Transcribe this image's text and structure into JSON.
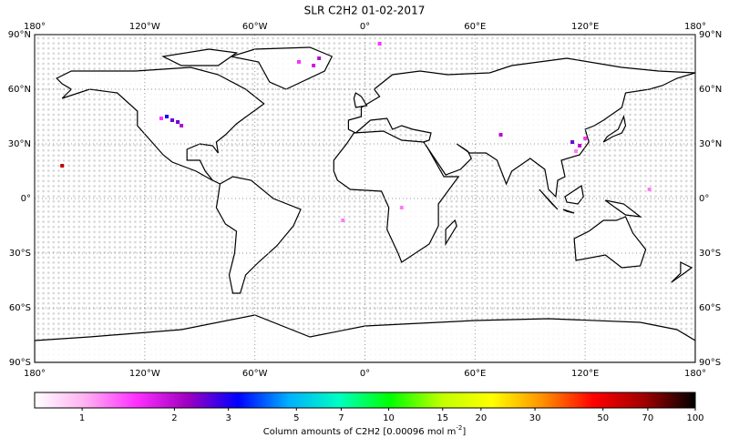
{
  "chart_data": {
    "type": "map",
    "title": "SLR C2H2 01-02-2017",
    "xlim": [
      -180,
      180
    ],
    "ylim": [
      -90,
      90
    ],
    "xticks": [
      {
        "value": -180,
        "label": "180°"
      },
      {
        "value": -120,
        "label": "120°W"
      },
      {
        "value": -60,
        "label": "60°W"
      },
      {
        "value": 0,
        "label": "0°"
      },
      {
        "value": 60,
        "label": "60°E"
      },
      {
        "value": 120,
        "label": "120°E"
      },
      {
        "value": 180,
        "label": "180°"
      }
    ],
    "yticks": [
      {
        "value": 90,
        "label": "90°N"
      },
      {
        "value": 60,
        "label": "60°N"
      },
      {
        "value": 30,
        "label": "30°N"
      },
      {
        "value": 0,
        "label": "0°"
      },
      {
        "value": -30,
        "label": "30°S"
      },
      {
        "value": -60,
        "label": "60°S"
      },
      {
        "value": -90,
        "label": "90°S"
      }
    ],
    "grid": true,
    "points": {
      "x": [
        -105,
        -108,
        -102,
        -100,
        -111,
        -36,
        -28,
        -25,
        8,
        113,
        117,
        120,
        115,
        74,
        -165,
        155,
        20,
        -12
      ],
      "y": [
        43,
        45,
        42,
        40,
        44,
        75,
        73,
        77,
        85,
        31,
        29,
        33,
        26,
        35,
        18,
        5,
        -5,
        -12
      ],
      "values": [
        2.5,
        3,
        2.5,
        2,
        1.5,
        1.5,
        1.8,
        2,
        1.5,
        2.5,
        2,
        1.5,
        1.2,
        2,
        60,
        1.2,
        1.2,
        1.2
      ]
    },
    "colorbar": {
      "label": "Column amounts of C2H2 [0.00096 mol m$^{-2}$]",
      "lim": [
        0.7,
        100
      ],
      "log": true,
      "ticks": [
        1,
        2,
        3,
        5,
        7,
        10,
        15,
        20,
        30,
        50,
        70,
        100
      ],
      "colors": [
        "#ffffff",
        "#ffb0f0",
        "#ff30ff",
        "#a000c0",
        "#0000ff",
        "#00b0ff",
        "#00ffc0",
        "#00ff00",
        "#c0ff00",
        "#ffff00",
        "#ff9000",
        "#ff0000",
        "#a00000",
        "#000000"
      ]
    }
  }
}
